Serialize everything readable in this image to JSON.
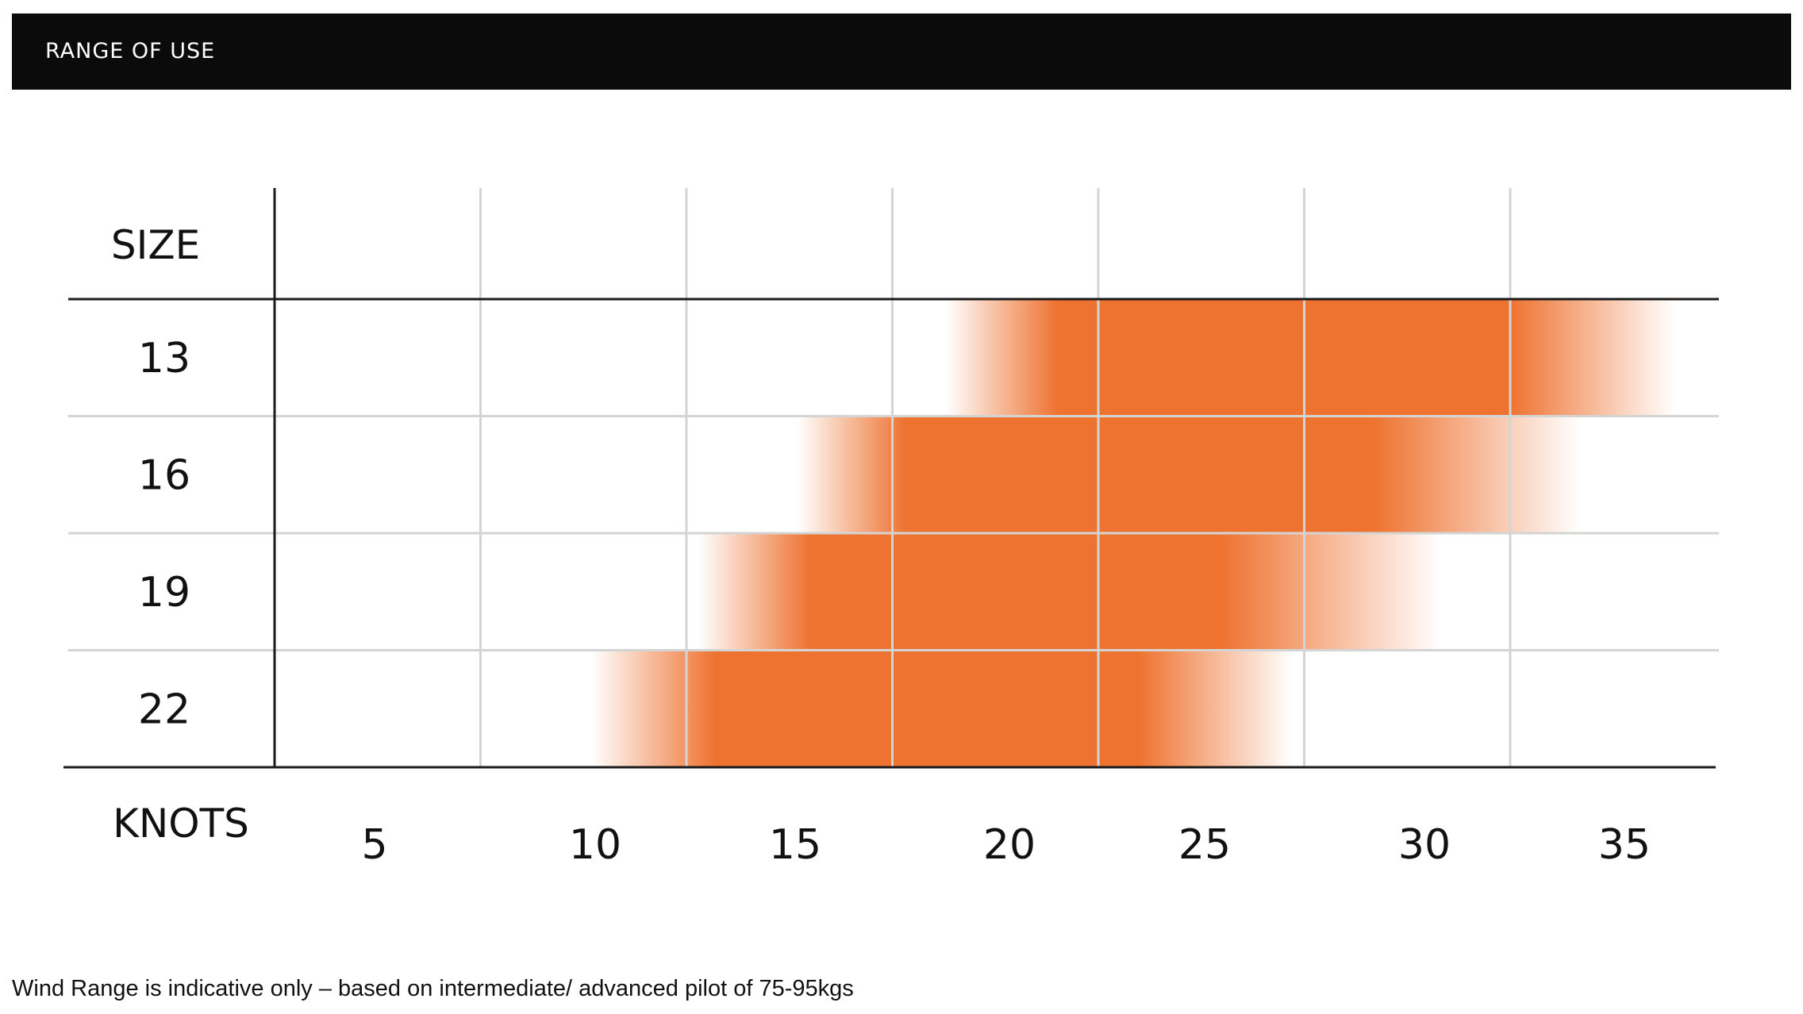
{
  "header": {
    "title": "RANGE OF USE"
  },
  "colors": {
    "accent": "#ee7331",
    "header_bg": "#0b0b0b"
  },
  "footnote": "Wind Range is indicative only – based on intermediate/ advanced pilot of 75-95kgs",
  "chart_data": {
    "type": "heatmap",
    "title": "RANGE OF USE",
    "row_header": "SIZE",
    "xlabel": "KNOTS",
    "x_ticks": [
      "5",
      "10",
      "15",
      "20",
      "25",
      "30",
      "35"
    ],
    "rows": [
      {
        "size": "13",
        "range": [
          18.8,
          36.5
        ],
        "peak": [
          21.5,
          32.5
        ]
      },
      {
        "size": "16",
        "range": [
          15.2,
          34.2
        ],
        "peak": [
          17.8,
          29.2
        ]
      },
      {
        "size": "19",
        "range": [
          12.8,
          30.8
        ],
        "peak": [
          15.5,
          25.5
        ]
      },
      {
        "size": "22",
        "range": [
          10.2,
          27.2
        ],
        "peak": [
          13.2,
          23.5
        ]
      }
    ],
    "grid": true
  }
}
